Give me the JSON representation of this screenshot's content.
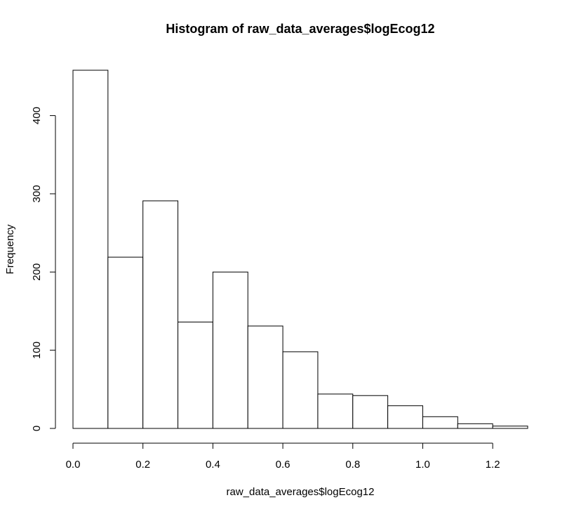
{
  "chart_data": {
    "type": "bar",
    "subtype": "histogram",
    "title": "Histogram of raw_data_averages$logEcog12",
    "xlabel": "raw_data_averages$logEcog12",
    "ylabel": "Frequency",
    "bin_edges": [
      0.0,
      0.1,
      0.2,
      0.3,
      0.4,
      0.5,
      0.6,
      0.7,
      0.8,
      0.9,
      1.0,
      1.1,
      1.2,
      1.3
    ],
    "values": [
      458,
      219,
      291,
      136,
      200,
      131,
      98,
      44,
      42,
      29,
      15,
      6,
      3
    ],
    "xlim": [
      0.0,
      1.3
    ],
    "ylim": [
      0,
      458
    ],
    "x_ticks": [
      0.0,
      0.2,
      0.4,
      0.6,
      0.8,
      1.0,
      1.2
    ],
    "x_tick_labels": [
      "0.0",
      "0.2",
      "0.4",
      "0.6",
      "0.8",
      "1.0",
      "1.2"
    ],
    "y_ticks": [
      0,
      100,
      200,
      300,
      400
    ],
    "y_tick_labels": [
      "0",
      "100",
      "200",
      "300",
      "400"
    ],
    "grid": false,
    "legend": "none",
    "colors": {
      "bar_fill": "#ffffff",
      "bar_stroke": "#000000",
      "background": "#ffffff"
    }
  }
}
